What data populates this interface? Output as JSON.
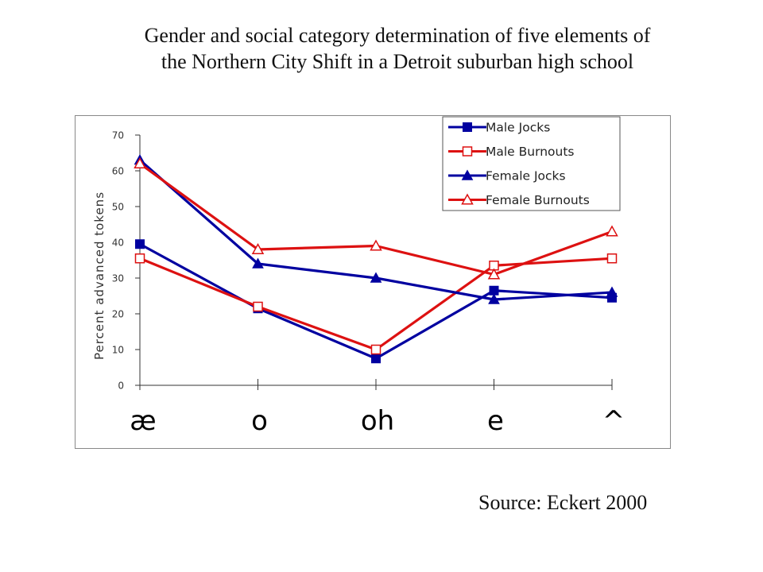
{
  "title_lines": [
    "Gender and social category determination of five elements of",
    "the Northern City Shift in a Detroit suburban high school"
  ],
  "source": "Source:  Eckert 2000",
  "chart_data": {
    "type": "line",
    "categories": [
      "æ",
      "o",
      "oh",
      "e",
      "^"
    ],
    "ylabel": "Percent advanced tokens",
    "ylim": [
      0,
      70
    ],
    "yticks": [
      0,
      10,
      20,
      30,
      40,
      50,
      60,
      70
    ],
    "grid": false,
    "legend_position": "top-right",
    "series": [
      {
        "name": "Male Jocks",
        "color": "#0000a0",
        "marker": "filled-square",
        "values": [
          39.5,
          21.5,
          7.5,
          26.5,
          24.5
        ]
      },
      {
        "name": "Male Burnouts",
        "color": "#dd1111",
        "marker": "open-square",
        "values": [
          35.5,
          22,
          10,
          33.5,
          35.5
        ]
      },
      {
        "name": "Female Jocks",
        "color": "#0000a0",
        "marker": "filled-triangle",
        "values": [
          63,
          34,
          30,
          24,
          26
        ]
      },
      {
        "name": "Female Burnouts",
        "color": "#dd1111",
        "marker": "open-triangle",
        "values": [
          62,
          38,
          39,
          31,
          43
        ]
      }
    ]
  }
}
